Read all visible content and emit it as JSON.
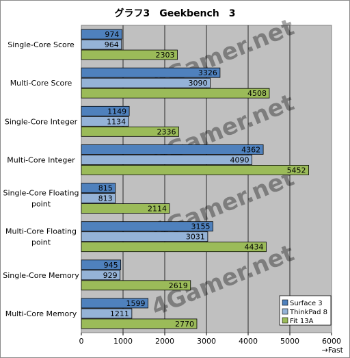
{
  "chart_data": {
    "type": "bar",
    "orientation": "horizontal",
    "title": "グラフ3　Geekbench　3",
    "categories": [
      "Single-Core Score",
      "Multi-Core Score",
      "Single-Core Integer",
      "Multi-Core Integer",
      "Single-Core Floating point",
      "Multi-Core Floating point",
      "Single-Core Memory",
      "Multi-Core Memory"
    ],
    "category_lines": [
      [
        "Single-Core Score"
      ],
      [
        "Multi-Core Score"
      ],
      [
        "Single-Core Integer"
      ],
      [
        "Multi-Core Integer"
      ],
      [
        "Single-Core Floating",
        "point"
      ],
      [
        "Multi-Core Floating",
        "point"
      ],
      [
        "Single-Core Memory"
      ],
      [
        "Multi-Core Memory"
      ]
    ],
    "series": [
      {
        "name": "Surface 3",
        "color": "#4f81bd",
        "values": [
          974,
          3326,
          1149,
          4362,
          815,
          3155,
          945,
          1599
        ]
      },
      {
        "name": "ThinkPad 8",
        "color": "#95b3d7",
        "values": [
          964,
          3090,
          1134,
          4090,
          813,
          3031,
          929,
          1211
        ]
      },
      {
        "name": "Fit 13A",
        "color": "#9bbb59",
        "values": [
          2303,
          4508,
          2336,
          5452,
          2114,
          4434,
          2619,
          2770
        ]
      }
    ],
    "xlim": [
      0,
      6000
    ],
    "xticks": [
      0,
      1000,
      2000,
      3000,
      4000,
      5000,
      6000
    ],
    "xlabel": "→Fast",
    "grid": true,
    "plot_background": "#c0c0c0",
    "legend_position": "bottom-right",
    "watermark": "4Gamer.net"
  }
}
